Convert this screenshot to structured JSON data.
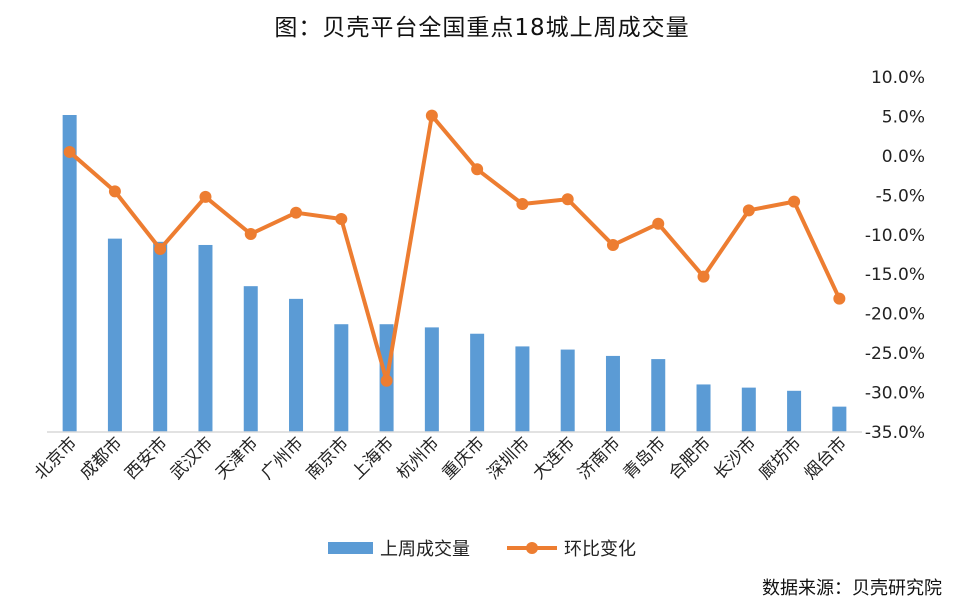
{
  "chart_data": {
    "type": "bar",
    "title": "图：贝壳平台全国重点18城上周成交量",
    "categories": [
      "北京市",
      "成都市",
      "西安市",
      "武汉市",
      "天津市",
      "广州市",
      "南京市",
      "上海市",
      "杭州市",
      "重庆市",
      "深圳市",
      "大连市",
      "济南市",
      "青岛市",
      "合肥市",
      "长沙市",
      "廊坊市",
      "烟台市"
    ],
    "series": [
      {
        "name": "上周成交量",
        "kind": "bar",
        "axis": "left",
        "color": "#5B9BD5",
        "values": [
          100,
          61,
          60,
          59,
          46,
          42,
          34,
          34,
          33,
          31,
          27,
          26,
          24,
          23,
          15,
          14,
          13,
          8
        ]
      },
      {
        "name": "环比变化",
        "kind": "line",
        "axis": "right",
        "color": "#ED7D31",
        "values": [
          0.5,
          -4.5,
          -11.8,
          -5.2,
          -9.9,
          -7.2,
          -8.0,
          -28.5,
          5.1,
          -1.7,
          -6.1,
          -5.5,
          -11.3,
          -8.6,
          -15.3,
          -6.9,
          -5.8,
          -18.1
        ]
      }
    ],
    "y2_ticks": [
      "10.0%",
      "5.0%",
      "0.0%",
      "-5.0%",
      "-10.0%",
      "-15.0%",
      "-20.0%",
      "-25.0%",
      "-30.0%",
      "-35.0%"
    ],
    "y2lim": [
      -35,
      10
    ],
    "ylim": [
      0,
      100
    ],
    "legend_position": "bottom",
    "grid": false
  },
  "source_text": "数据来源：贝壳研究院"
}
